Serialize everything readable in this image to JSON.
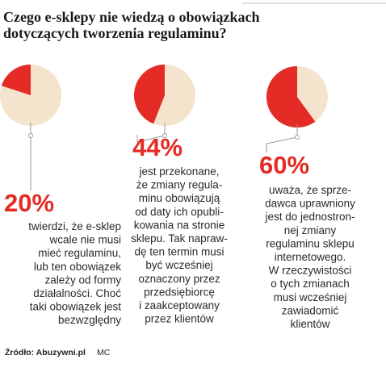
{
  "title": [
    "Czego e-sklepy nie wiedzą o obowiązkach",
    "dotyczących tworzenia regulaminu?"
  ],
  "chart_data": [
    {
      "type": "pie",
      "values": [
        20
      ],
      "value_labels": [
        "20%"
      ],
      "color": "#e42b25",
      "background": "#f4e3cd",
      "description": [
        "twierdzi, że e-sklep",
        "wcale nie musi",
        "mieć regulaminu,",
        "lub ten obowiązek",
        "zależy od formy",
        "działalności. Choć",
        "taki obowiązek jest",
        "bezwzględny"
      ]
    },
    {
      "type": "pie",
      "values": [
        44
      ],
      "value_labels": [
        "44%"
      ],
      "color": "#e42b25",
      "background": "#f4e3cd",
      "description": [
        "jest przekonane,",
        "że zmiany regula-",
        "minu obowiązują",
        "od daty ich opubli-",
        "kowania na stronie",
        "sklepu. Tak napraw-",
        "dę ten termin musi",
        "być wcześniej",
        "oznaczony przez",
        "przedsiębiorcę",
        "i zaakceptowany",
        "przez klientów"
      ]
    },
    {
      "type": "pie",
      "values": [
        60
      ],
      "value_labels": [
        "60%"
      ],
      "color": "#e42b25",
      "background": "#f4e3cd",
      "description": [
        "uważa, że sprze-",
        "dawca uprawniony",
        "jest do jednostron-",
        "nej zmiany",
        "regulaminu sklepu",
        "internetowego.",
        "W rzeczywistości",
        "o tych zmianach",
        "musi wcześniej",
        "zawiadomić",
        "klientów"
      ]
    }
  ],
  "source": "Źródło: Abuzywni.pl",
  "credit": "MC"
}
